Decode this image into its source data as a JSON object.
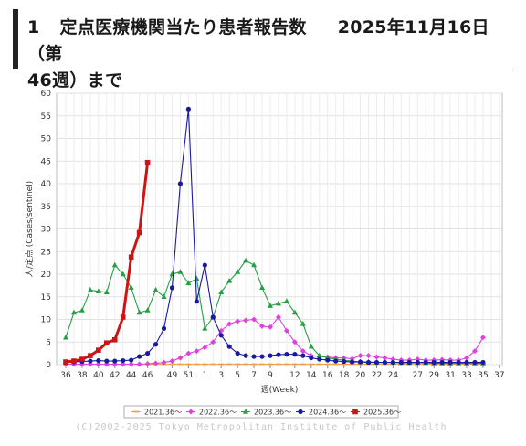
{
  "heading": {
    "number": "1",
    "title": "定点医療機関当たり患者報告数",
    "date_line1": "2025年11月16日（第",
    "date_line2": "46週）まで"
  },
  "credit": "(C)2002-2025 Tokyo Metropolitan Institute of Public Health",
  "chart_data": {
    "type": "line",
    "title": "",
    "xlabel": "週(Week)",
    "ylabel": "人/定点 (Cases/sentinel)",
    "ylim": [
      0,
      60
    ],
    "yticks": [
      0,
      5,
      10,
      15,
      20,
      25,
      30,
      35,
      40,
      45,
      50,
      55,
      60
    ],
    "grid": true,
    "legend_position": "bottom",
    "x_categories": [
      "36",
      "37",
      "38",
      "39",
      "40",
      "41",
      "42",
      "43",
      "44",
      "45",
      "46",
      "47",
      "48",
      "49",
      "50",
      "51",
      "52",
      "1",
      "2",
      "3",
      "4",
      "5",
      "6",
      "7",
      "8",
      "9",
      "10",
      "11",
      "12",
      "13",
      "14",
      "15",
      "16",
      "17",
      "18",
      "19",
      "20",
      "21",
      "22",
      "23",
      "24",
      "25",
      "26",
      "27",
      "28",
      "29",
      "30",
      "31",
      "32",
      "33",
      "34",
      "35",
      "36",
      "37"
    ],
    "x_tick_labels": [
      "36",
      "38",
      "40",
      "42",
      "44",
      "46",
      "49",
      "51",
      "1",
      "3",
      "5",
      "7",
      "9",
      "12",
      "14",
      "16",
      "18",
      "20",
      "22",
      "24",
      "27",
      "29",
      "31",
      "33",
      "35",
      "37"
    ],
    "series": [
      {
        "name": "2021.36〜",
        "color": "#f5a04a",
        "marker": "dash",
        "values": [
          0.1,
          0.1,
          0.1,
          0.1,
          0.1,
          0.1,
          0.1,
          0.1,
          0.1,
          0.1,
          0.1,
          0.1,
          0.1,
          0.1,
          0.1,
          0.1,
          0.1,
          0.1,
          0.1,
          0.1,
          0.1,
          0.1,
          0.1,
          0.1,
          0.1,
          0.1,
          0.1,
          0.1,
          0.1,
          0.1,
          0.1,
          0.1,
          0.1,
          0.1,
          0.1,
          0.1,
          0.1,
          0.1,
          0.1,
          0.1,
          0.1,
          0.1,
          0.1,
          0.1,
          0.1,
          0.1,
          0.1,
          0.1,
          0.1,
          0.1,
          0.1,
          0.1
        ]
      },
      {
        "name": "2022.36〜",
        "color": "#e040e0",
        "marker": "diamond",
        "values": [
          0.1,
          0.1,
          0.1,
          0.1,
          0.1,
          0.1,
          0.1,
          0.1,
          0.1,
          0.1,
          0.2,
          0.3,
          0.5,
          0.8,
          1.5,
          2.5,
          3.0,
          3.8,
          5.0,
          7.5,
          9.0,
          9.6,
          9.8,
          10.0,
          8.5,
          8.3,
          10.5,
          7.5,
          5.0,
          3.0,
          2.0,
          1.8,
          1.7,
          1.5,
          1.5,
          1.3,
          2.0,
          2.0,
          1.7,
          1.5,
          1.2,
          1.0,
          1.0,
          1.2,
          1.0,
          1.0,
          1.1,
          1.0,
          1.0,
          1.5,
          3.0,
          6.0
        ]
      },
      {
        "name": "2023.36〜",
        "color": "#22a042",
        "marker": "triangle",
        "values": [
          6.0,
          11.5,
          12.0,
          16.5,
          16.2,
          16.0,
          22.0,
          20.0,
          17.0,
          11.5,
          12.0,
          16.5,
          15.0,
          20.0,
          20.5,
          18.0,
          19.0,
          8.0,
          10.5,
          16.0,
          18.5,
          20.5,
          23.0,
          22.0,
          17.0,
          13.0,
          13.5,
          14.0,
          11.5,
          9.0,
          4.0,
          2.0,
          1.5,
          1.2,
          1.0,
          0.8,
          0.6,
          0.6,
          0.5,
          0.5,
          0.5,
          0.4,
          0.4,
          0.4,
          0.4,
          0.3,
          0.3,
          0.3,
          0.3,
          0.3,
          0.3,
          0.3
        ]
      },
      {
        "name": "2024.36〜",
        "color": "#1a1aa0",
        "marker": "circle",
        "values": [
          0.5,
          0.6,
          0.7,
          0.8,
          0.9,
          0.8,
          0.8,
          0.9,
          1.0,
          1.8,
          2.5,
          4.5,
          8.0,
          17.0,
          40.0,
          56.5,
          14.0,
          22.0,
          10.5,
          6.5,
          4.0,
          2.5,
          2.0,
          1.8,
          1.8,
          2.0,
          2.2,
          2.3,
          2.3,
          2.0,
          1.5,
          1.2,
          1.0,
          0.8,
          0.7,
          0.6,
          0.6,
          0.5,
          0.5,
          0.5,
          0.5,
          0.5,
          0.5,
          0.5,
          0.5,
          0.5,
          0.5,
          0.5,
          0.5,
          0.5,
          0.5,
          0.5
        ]
      },
      {
        "name": "2025.36〜",
        "color": "#cc1414",
        "marker": "square",
        "values": [
          0.6,
          0.8,
          1.2,
          2.0,
          3.2,
          4.8,
          5.5,
          10.5,
          23.8,
          29.2,
          44.7
        ]
      }
    ]
  }
}
